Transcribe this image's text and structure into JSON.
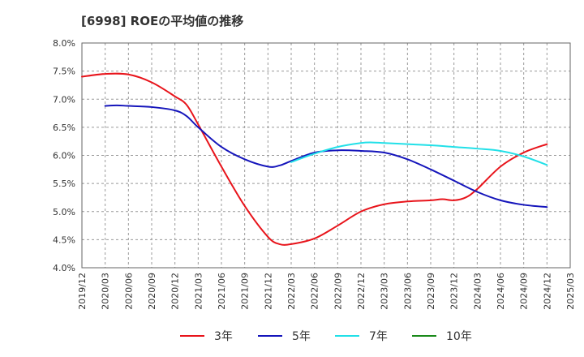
{
  "chart_data": {
    "type": "line",
    "title": "[6998]  ROEの平均値の推移",
    "xlabel": "",
    "ylabel": "",
    "ylim": [
      4.0,
      8.0
    ],
    "y_ticks": [
      "8.0%",
      "7.5%",
      "7.0%",
      "6.5%",
      "6.0%",
      "5.5%",
      "5.0%",
      "4.5%",
      "4.0%"
    ],
    "x_ticks": [
      "2019/12",
      "2020/03",
      "2020/06",
      "2020/09",
      "2020/12",
      "2021/03",
      "2021/06",
      "2021/09",
      "2021/12",
      "2022/03",
      "2022/06",
      "2022/09",
      "2022/12",
      "2023/03",
      "2023/06",
      "2023/09",
      "2023/12",
      "2024/03",
      "2024/06",
      "2024/09",
      "2024/12",
      "2025/03"
    ],
    "grid": true,
    "legend_position": "bottom",
    "series": [
      {
        "name": "3年",
        "color": "#e8141b",
        "points": [
          [
            0,
            7.4
          ],
          [
            1,
            7.45
          ],
          [
            2,
            7.44
          ],
          [
            3,
            7.3
          ],
          [
            4,
            7.05
          ],
          [
            4.5,
            6.9
          ],
          [
            5,
            6.55
          ],
          [
            6,
            5.8
          ],
          [
            7,
            5.1
          ],
          [
            8,
            4.55
          ],
          [
            8.5,
            4.42
          ],
          [
            9,
            4.42
          ],
          [
            10,
            4.52
          ],
          [
            11,
            4.75
          ],
          [
            12,
            5.0
          ],
          [
            13,
            5.13
          ],
          [
            14,
            5.18
          ],
          [
            15,
            5.2
          ],
          [
            15.5,
            5.22
          ],
          [
            16,
            5.2
          ],
          [
            16.5,
            5.25
          ],
          [
            17,
            5.4
          ],
          [
            18,
            5.8
          ],
          [
            19,
            6.05
          ],
          [
            20,
            6.2
          ]
        ]
      },
      {
        "name": "5年",
        "color": "#1515bb",
        "points": [
          [
            1,
            6.88
          ],
          [
            1.5,
            6.89
          ],
          [
            2,
            6.88
          ],
          [
            3,
            6.86
          ],
          [
            4,
            6.8
          ],
          [
            4.5,
            6.7
          ],
          [
            5,
            6.5
          ],
          [
            6,
            6.15
          ],
          [
            7,
            5.93
          ],
          [
            8,
            5.8
          ],
          [
            8.5,
            5.82
          ],
          [
            9,
            5.9
          ],
          [
            10,
            6.05
          ],
          [
            11,
            6.09
          ],
          [
            12,
            6.08
          ],
          [
            13,
            6.05
          ],
          [
            14,
            5.93
          ],
          [
            15,
            5.75
          ],
          [
            16,
            5.55
          ],
          [
            17,
            5.35
          ],
          [
            18,
            5.2
          ],
          [
            19,
            5.12
          ],
          [
            20,
            5.08
          ]
        ]
      },
      {
        "name": "7年",
        "color": "#22e0e8",
        "points": [
          [
            9,
            5.88
          ],
          [
            10,
            6.03
          ],
          [
            11,
            6.15
          ],
          [
            12,
            6.22
          ],
          [
            12.5,
            6.23
          ],
          [
            13,
            6.22
          ],
          [
            14,
            6.2
          ],
          [
            15,
            6.18
          ],
          [
            16,
            6.15
          ],
          [
            17,
            6.12
          ],
          [
            18,
            6.08
          ],
          [
            19,
            5.98
          ],
          [
            20,
            5.83
          ]
        ]
      },
      {
        "name": "10年",
        "color": "#1a8a1a",
        "points": []
      }
    ]
  }
}
